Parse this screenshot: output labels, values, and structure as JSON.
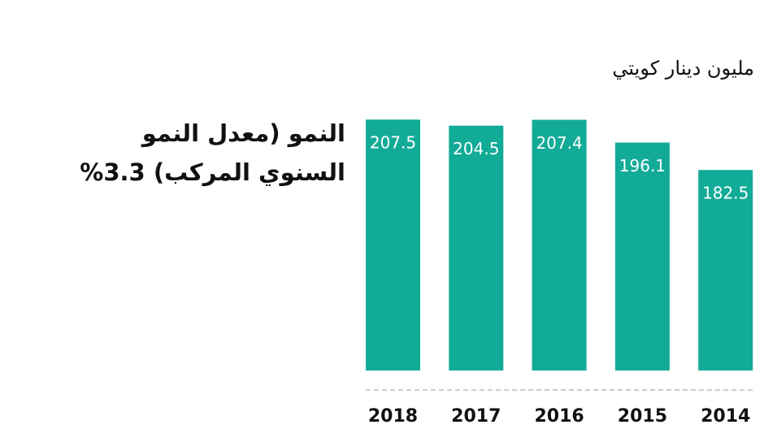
{
  "chart_data": {
    "type": "bar",
    "subtitle": "مليون دينار كويتي",
    "annotation": "النمو (معدل النمو السنوي المركب) 3.3%",
    "categories": [
      "2018",
      "2017",
      "2016",
      "2015",
      "2014"
    ],
    "values": [
      207.5,
      204.5,
      207.4,
      196.1,
      182.5
    ],
    "color": "#12ab97",
    "ylim": [
      83,
      210
    ]
  }
}
